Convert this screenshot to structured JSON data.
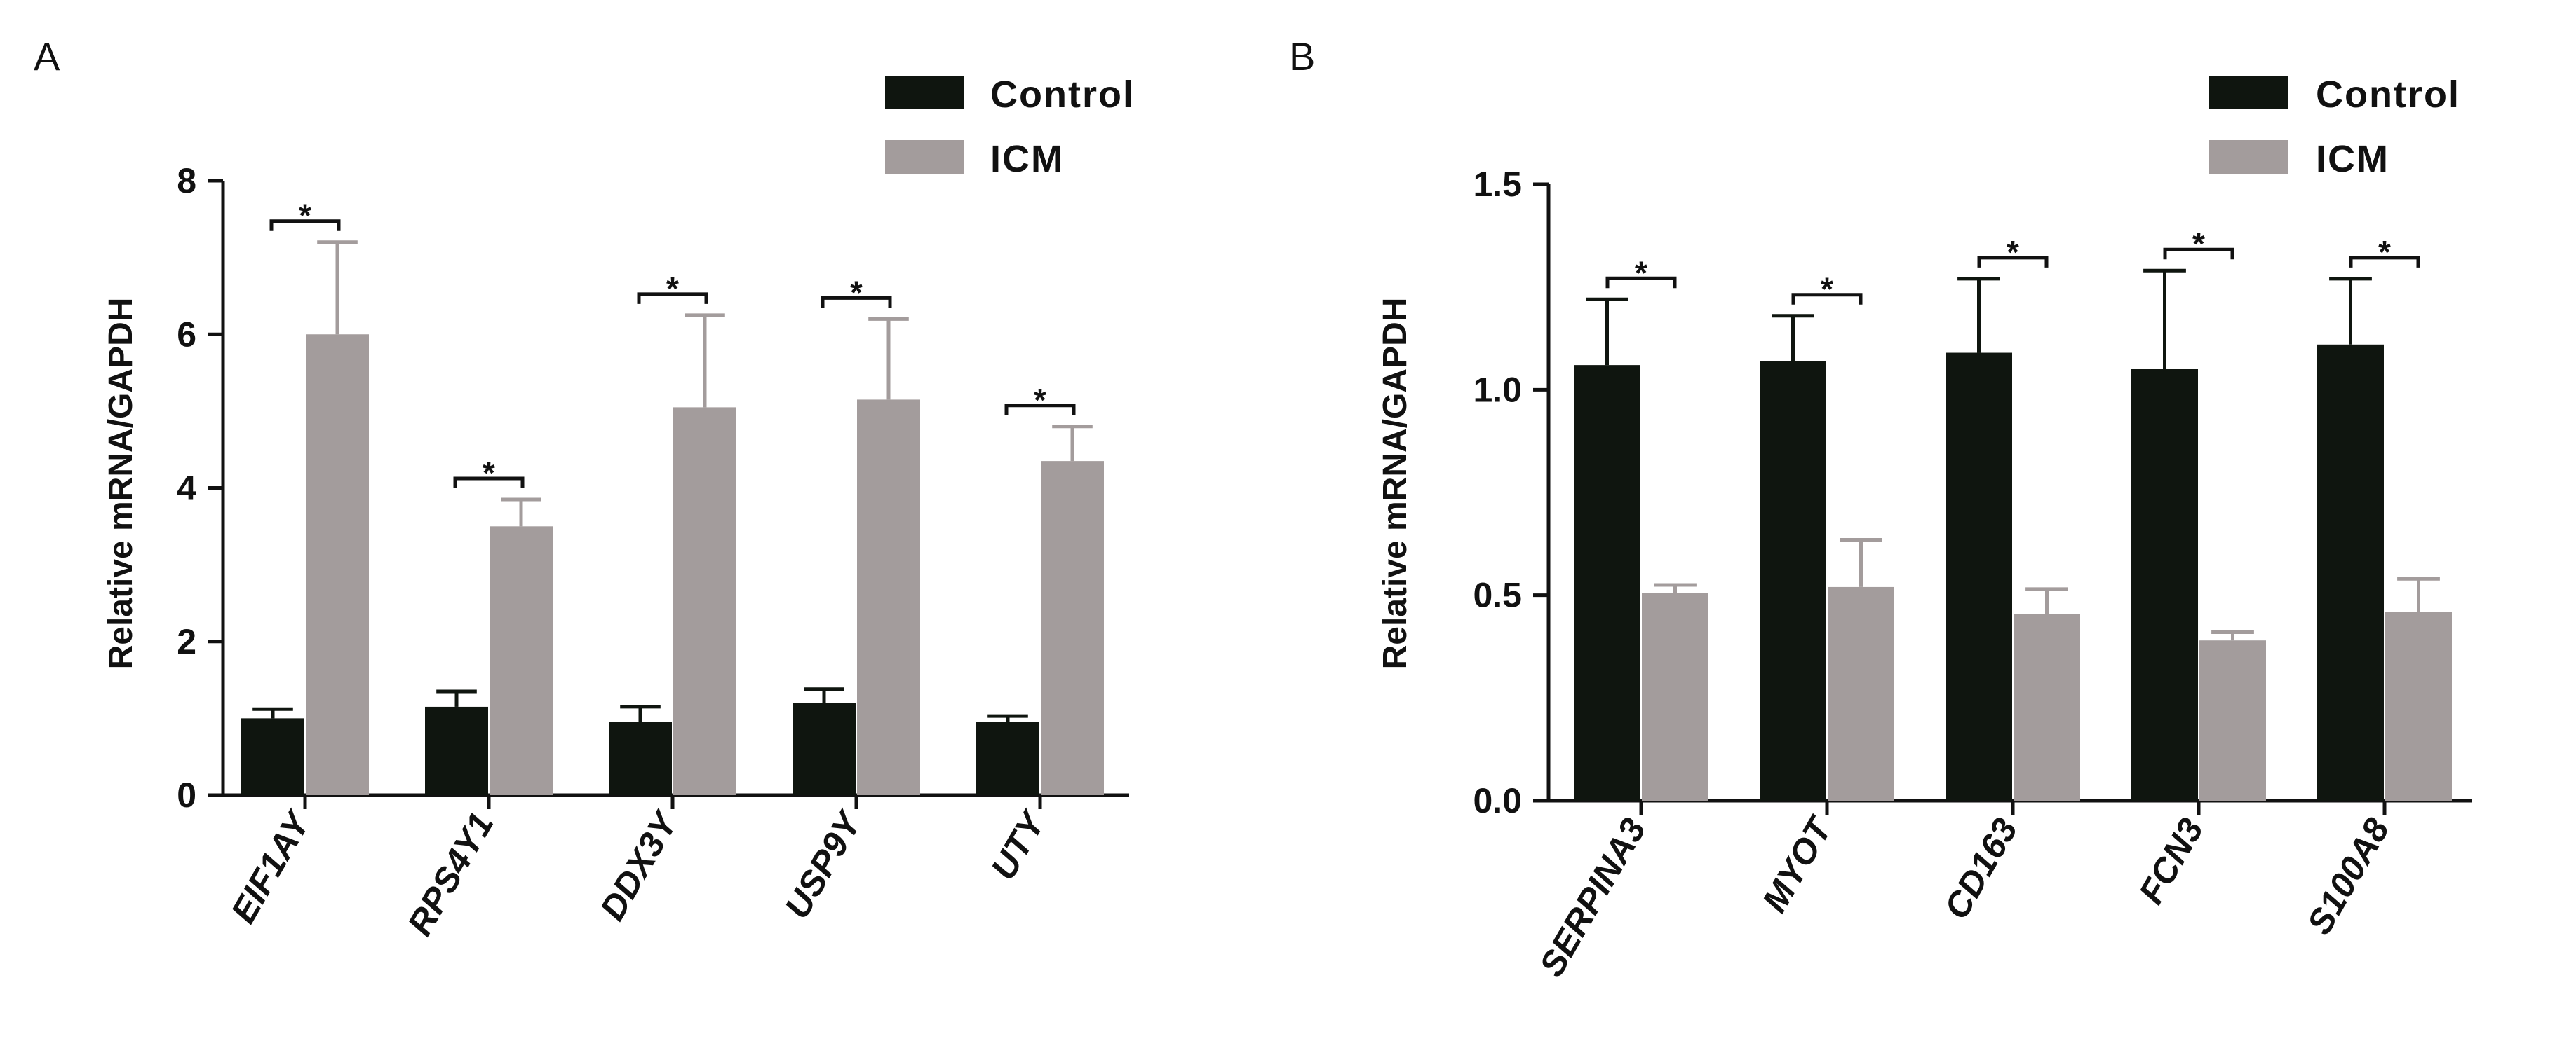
{
  "colors": {
    "control": "#0f150f",
    "icm": "#a39c9c",
    "axis": "#111111"
  },
  "legend": {
    "control_label": "Control",
    "icm_label": "ICM"
  },
  "chart_data": [
    {
      "panel": "A",
      "type": "bar",
      "ylabel": "Relative mRNA/GAPDH",
      "ylim": [
        0,
        8
      ],
      "yticks": [
        "0",
        "2",
        "4",
        "6",
        "8"
      ],
      "ytick_values": [
        0,
        2,
        4,
        6,
        8
      ],
      "categories": [
        "EIF1AY",
        "RPS4Y1",
        "DDX3Y",
        "USP9Y",
        "UTY"
      ],
      "series": [
        {
          "name": "Control",
          "values": [
            1.0,
            1.15,
            0.95,
            1.2,
            0.95
          ],
          "errors": [
            0.12,
            0.2,
            0.2,
            0.18,
            0.08
          ]
        },
        {
          "name": "ICM",
          "values": [
            6.0,
            3.5,
            5.05,
            5.15,
            4.35
          ],
          "errors": [
            1.2,
            0.35,
            1.2,
            1.05,
            0.45
          ]
        }
      ],
      "significance": [
        "*",
        "*",
        "*",
        "*",
        "*"
      ],
      "legend": "top-right"
    },
    {
      "panel": "B",
      "type": "bar",
      "ylabel": "Relative mRNA/GAPDH",
      "ylim": [
        0,
        1.5
      ],
      "yticks": [
        "0.0",
        "0.5",
        "1.0",
        "1.5"
      ],
      "ytick_values": [
        0,
        0.5,
        1.0,
        1.5
      ],
      "categories": [
        "SERPINA3",
        "MYOT",
        "CD163",
        "FCN3",
        "S100A8"
      ],
      "series": [
        {
          "name": "Control",
          "values": [
            1.06,
            1.07,
            1.09,
            1.05,
            1.11
          ],
          "errors": [
            0.16,
            0.11,
            0.18,
            0.24,
            0.16
          ]
        },
        {
          "name": "ICM",
          "values": [
            0.505,
            0.52,
            0.455,
            0.39,
            0.46
          ],
          "errors": [
            0.02,
            0.115,
            0.06,
            0.02,
            0.08
          ]
        }
      ],
      "significance": [
        "*",
        "*",
        "*",
        "*",
        "*"
      ],
      "legend": "top-right"
    }
  ]
}
